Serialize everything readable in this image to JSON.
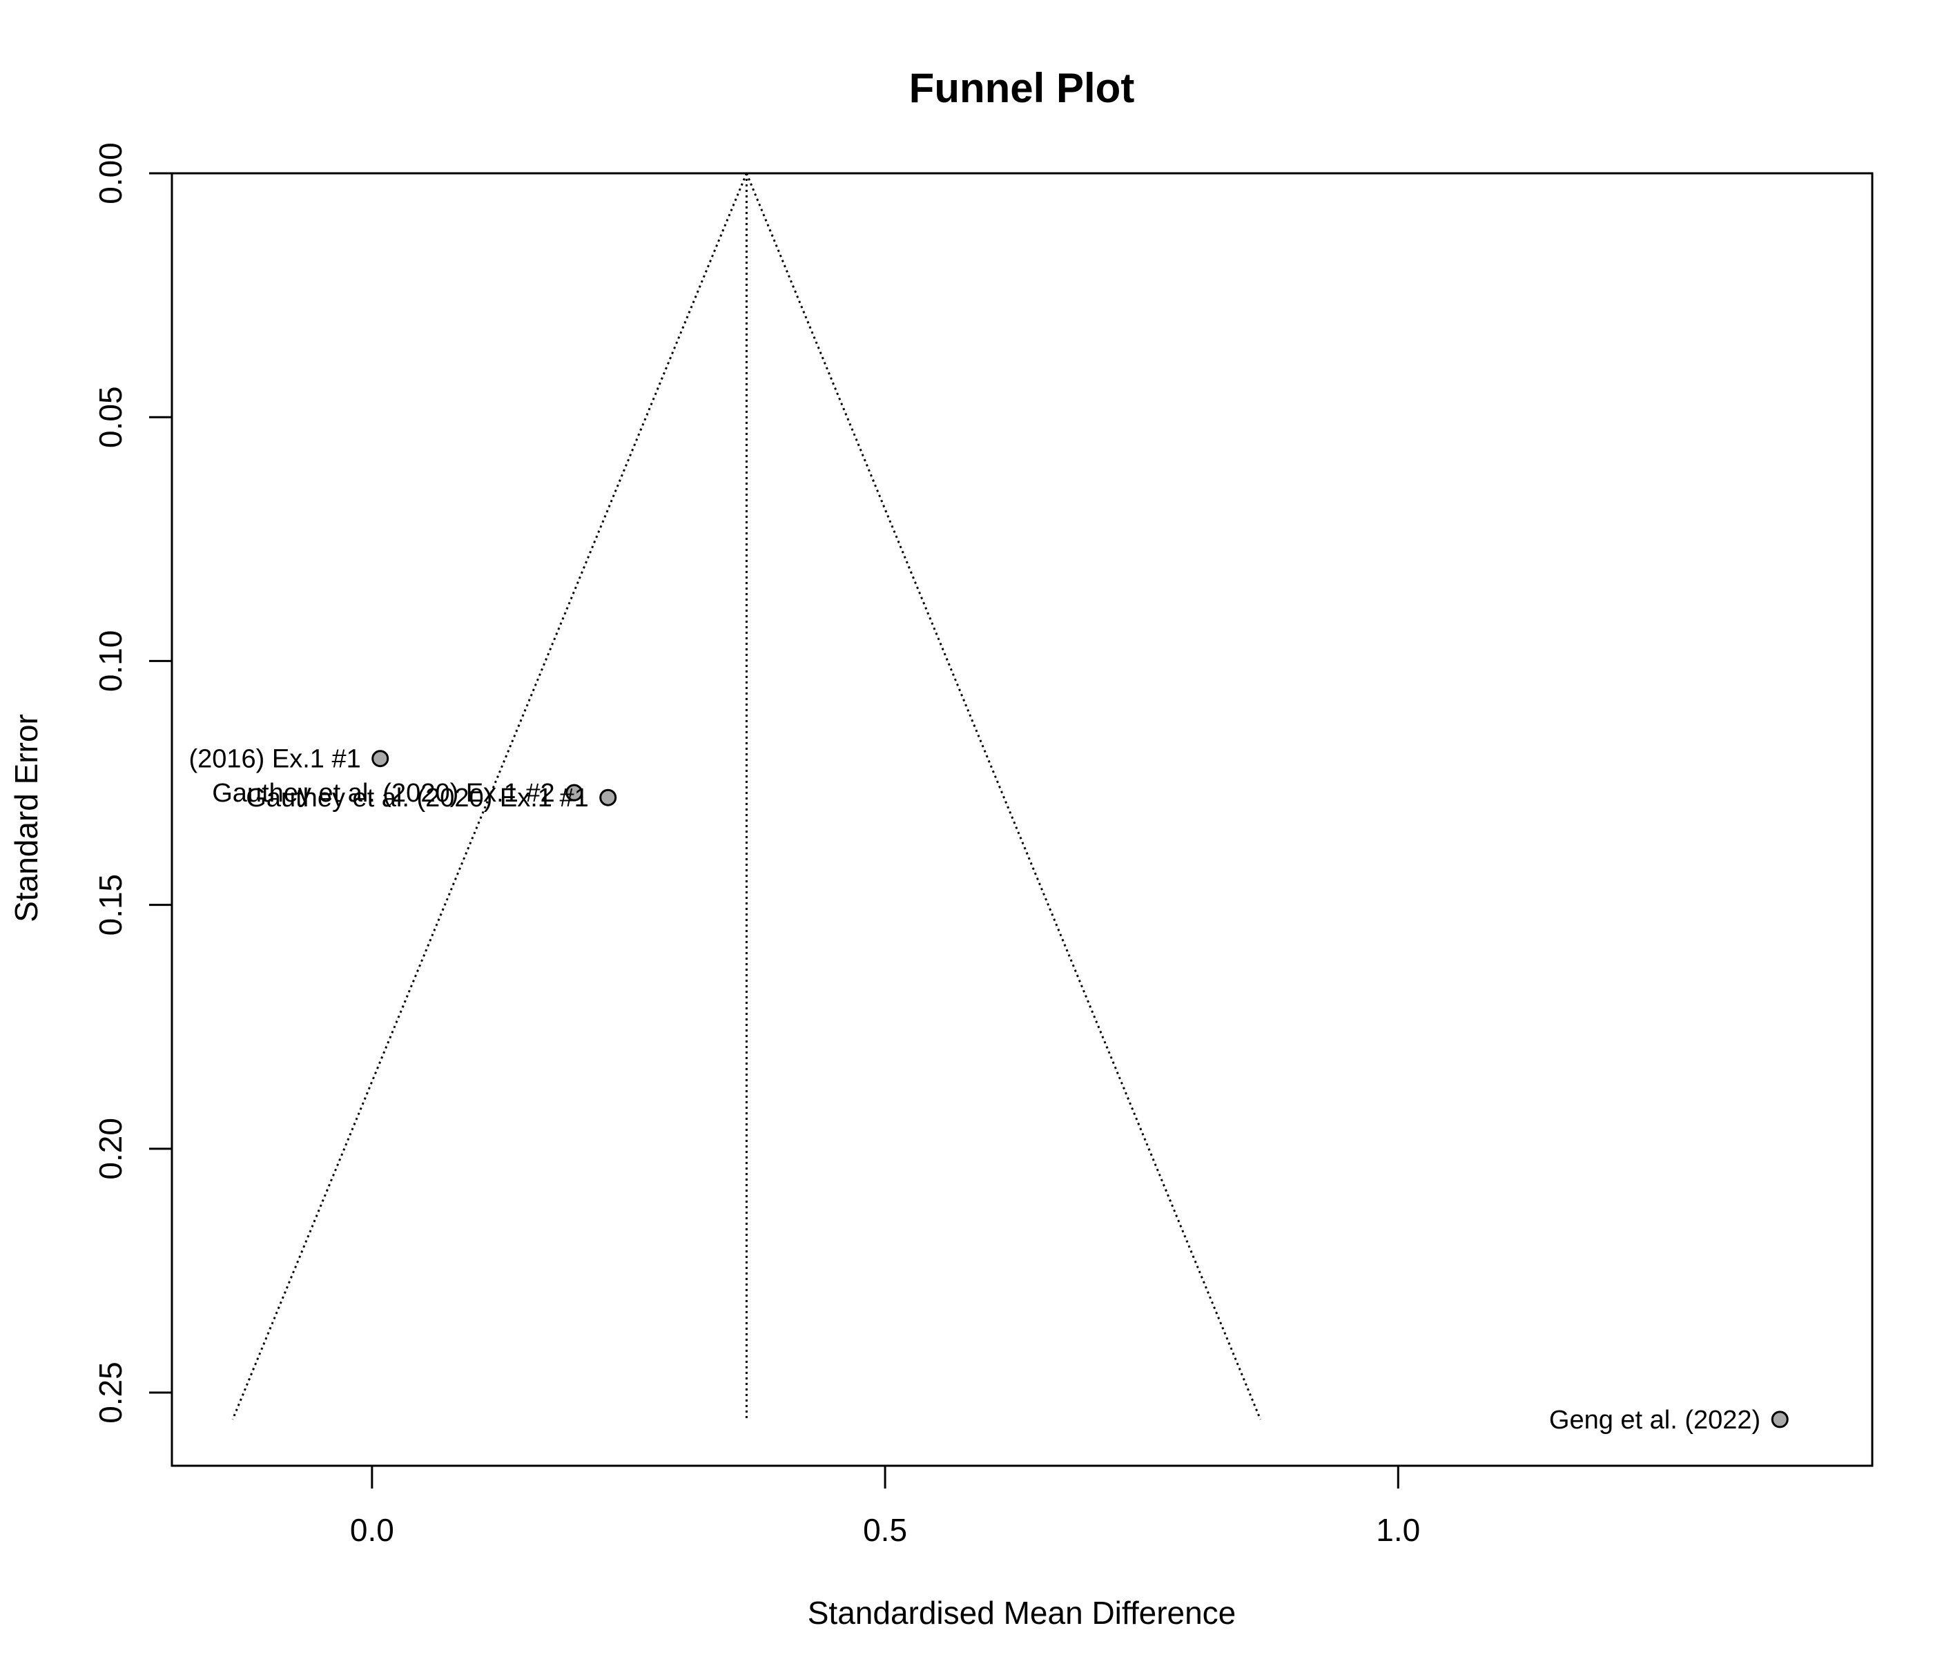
{
  "chart_data": {
    "type": "scatter",
    "title": "Funnel Plot",
    "xlabel": "Standardised Mean Difference",
    "ylabel": "Standard Error",
    "xlim": [
      -0.195,
      1.462
    ],
    "ylim": [
      0.0,
      0.265
    ],
    "y_reversed": true,
    "x_ticks": [
      0.0,
      0.5,
      1.0
    ],
    "x_tick_labels": [
      "0.0",
      "0.5",
      "1.0"
    ],
    "y_ticks": [
      0.0,
      0.05,
      0.1,
      0.15,
      0.2,
      0.25
    ],
    "y_tick_labels": [
      "0.00",
      "0.05",
      "0.10",
      "0.15",
      "0.20",
      "0.25"
    ],
    "grid": false,
    "pooled_estimate": 0.365,
    "funnel_max_se": 0.2555,
    "point_color": "#a9a9a9",
    "points": [
      {
        "x": 0.008,
        "y": 0.12,
        "label": "(2016) Ex.1 #1"
      },
      {
        "x": 0.197,
        "y": 0.127,
        "label": "Gauthey et al. (2020) Ex.1 #2"
      },
      {
        "x": 0.23,
        "y": 0.128,
        "label": "Gauthey et al. (2020) Ex.1 #1"
      },
      {
        "x": 1.372,
        "y": 0.2555,
        "label": "Geng et al. (2022)"
      }
    ]
  }
}
